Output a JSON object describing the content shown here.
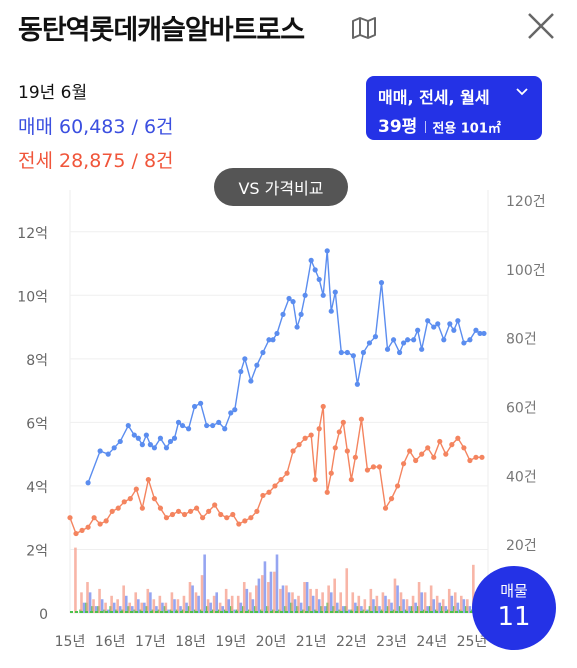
{
  "header": {
    "title": "동탄역롯데캐슬알바트로스",
    "map_icon": "map-icon",
    "close_icon": "close-icon"
  },
  "summary": {
    "date": "19년 6월",
    "sale": "매매 60,483 / 6건",
    "jeonse": "전세 28,875 / 8건"
  },
  "filter": {
    "types": "매매, 전세, 월세",
    "pyeong": "39평",
    "area": "전용 101㎡"
  },
  "compare_button": "VS 가격비교",
  "floating": {
    "label": "매물",
    "count": "11"
  },
  "colors": {
    "sale": "#5b8def",
    "jeonse": "#f4845f",
    "accent": "#2432e6",
    "volume_green": "#4cc24c"
  },
  "chart_data": {
    "type": "line",
    "x_axis_labels": [
      "15년",
      "16년",
      "17년",
      "18년",
      "19년",
      "20년",
      "21년",
      "22년",
      "23년",
      "24년",
      "25년"
    ],
    "x_range": [
      2015.0,
      2025.4
    ],
    "y_left_label_ticks": [
      "0",
      "2억",
      "4억",
      "6억",
      "8억",
      "10억",
      "12억"
    ],
    "y_left_range": [
      0,
      13
    ],
    "y_right_label_ticks": [
      "20건",
      "40건",
      "60건",
      "80건",
      "100건",
      "120건"
    ],
    "y_right_range": [
      0,
      120
    ],
    "grid": "horizontal",
    "series": [
      {
        "name": "매매",
        "color": "#5b8def",
        "x": [
          2015.45,
          2015.75,
          2015.95,
          2016.1,
          2016.25,
          2016.45,
          2016.6,
          2016.7,
          2016.8,
          2016.9,
          2017.0,
          2017.1,
          2017.25,
          2017.4,
          2017.5,
          2017.6,
          2017.7,
          2017.8,
          2017.95,
          2018.1,
          2018.25,
          2018.4,
          2018.55,
          2018.7,
          2018.85,
          2019.0,
          2019.1,
          2019.25,
          2019.35,
          2019.5,
          2019.65,
          2019.8,
          2019.95,
          2020.05,
          2020.15,
          2020.3,
          2020.45,
          2020.55,
          2020.65,
          2020.75,
          2020.85,
          2021.0,
          2021.1,
          2021.2,
          2021.3,
          2021.4,
          2021.5,
          2021.6,
          2021.75,
          2021.9,
          2022.05,
          2022.15,
          2022.3,
          2022.45,
          2022.6,
          2022.75,
          2022.9,
          2023.05,
          2023.2,
          2023.3,
          2023.4,
          2023.55,
          2023.65,
          2023.75,
          2023.9,
          2024.05,
          2024.15,
          2024.3,
          2024.45,
          2024.55,
          2024.65,
          2024.8,
          2024.95,
          2025.1,
          2025.2,
          2025.3
        ],
        "values": [
          4.1,
          5.1,
          5.0,
          5.2,
          5.4,
          5.9,
          5.6,
          5.5,
          5.3,
          5.6,
          5.3,
          5.2,
          5.5,
          5.2,
          5.4,
          5.5,
          6.0,
          5.9,
          5.8,
          6.5,
          6.6,
          5.9,
          5.9,
          6.0,
          5.8,
          6.3,
          6.4,
          7.6,
          8.0,
          7.3,
          7.8,
          8.2,
          8.6,
          8.6,
          8.8,
          9.4,
          9.9,
          9.8,
          9.0,
          9.4,
          10.0,
          11.1,
          10.8,
          10.5,
          10.0,
          11.4,
          9.5,
          10.1,
          8.2,
          8.2,
          8.1,
          7.2,
          8.2,
          8.5,
          8.7,
          10.4,
          8.3,
          8.6,
          8.2,
          8.5,
          8.6,
          8.6,
          8.9,
          8.3,
          9.2,
          9.0,
          9.1,
          8.6,
          9.1,
          8.9,
          9.2,
          8.5,
          8.6,
          8.9,
          8.8,
          8.8
        ],
        "values_note": "억"
      },
      {
        "name": "전세",
        "color": "#f4845f",
        "x": [
          2015.0,
          2015.15,
          2015.3,
          2015.45,
          2015.6,
          2015.75,
          2015.9,
          2016.05,
          2016.2,
          2016.35,
          2016.5,
          2016.65,
          2016.8,
          2016.95,
          2017.1,
          2017.25,
          2017.4,
          2017.55,
          2017.7,
          2017.85,
          2018.0,
          2018.15,
          2018.3,
          2018.45,
          2018.6,
          2018.75,
          2018.9,
          2019.05,
          2019.2,
          2019.35,
          2019.5,
          2019.65,
          2019.8,
          2019.95,
          2020.1,
          2020.25,
          2020.4,
          2020.55,
          2020.7,
          2020.85,
          2021.0,
          2021.1,
          2021.2,
          2021.3,
          2021.4,
          2021.5,
          2021.6,
          2021.7,
          2021.8,
          2021.9,
          2022.0,
          2022.1,
          2022.25,
          2022.4,
          2022.55,
          2022.7,
          2022.85,
          2023.0,
          2023.15,
          2023.3,
          2023.45,
          2023.6,
          2023.75,
          2023.9,
          2024.05,
          2024.2,
          2024.35,
          2024.5,
          2024.65,
          2024.8,
          2024.95,
          2025.1,
          2025.25
        ],
        "values": [
          3.0,
          2.5,
          2.6,
          2.7,
          3.0,
          2.8,
          2.9,
          3.2,
          3.3,
          3.5,
          3.6,
          3.9,
          3.3,
          4.2,
          3.6,
          3.3,
          3.0,
          3.1,
          3.2,
          3.1,
          3.2,
          3.3,
          3.0,
          3.2,
          3.4,
          3.1,
          3.0,
          3.1,
          2.8,
          2.9,
          3.0,
          3.2,
          3.7,
          3.8,
          4.0,
          4.2,
          4.4,
          5.1,
          5.3,
          5.5,
          5.6,
          4.2,
          5.8,
          6.5,
          3.8,
          4.4,
          5.2,
          5.7,
          6.0,
          5.1,
          4.2,
          4.9,
          6.1,
          4.5,
          4.6,
          4.6,
          3.3,
          3.6,
          4.0,
          4.7,
          5.1,
          4.8,
          5.0,
          5.2,
          4.9,
          5.4,
          5.0,
          5.3,
          5.5,
          5.2,
          4.8,
          4.9,
          4.9
        ],
        "values_note": "억"
      }
    ],
    "volume_bars": {
      "sale_color": "#8a9bef",
      "jeonse_color": "#f7a898",
      "monthly_color": "#4cc24c",
      "x": [
        2015.2,
        2015.35,
        2015.5,
        2015.65,
        2015.8,
        2015.95,
        2016.1,
        2016.25,
        2016.4,
        2016.55,
        2016.7,
        2016.85,
        2017.0,
        2017.15,
        2017.3,
        2017.45,
        2017.6,
        2017.75,
        2017.9,
        2018.05,
        2018.2,
        2018.35,
        2018.5,
        2018.65,
        2018.8,
        2018.95,
        2019.1,
        2019.25,
        2019.4,
        2019.55,
        2019.7,
        2019.85,
        2020.0,
        2020.15,
        2020.3,
        2020.45,
        2020.6,
        2020.75,
        2020.9,
        2021.05,
        2021.2,
        2021.35,
        2021.5,
        2021.65,
        2021.8,
        2021.95,
        2022.1,
        2022.25,
        2022.4,
        2022.55,
        2022.7,
        2022.85,
        2023.0,
        2023.15,
        2023.3,
        2023.45,
        2023.6,
        2023.75,
        2023.9,
        2024.05,
        2024.2,
        2024.35,
        2024.5,
        2024.65,
        2024.8,
        2024.95,
        2025.1,
        2025.25
      ],
      "sale": [
        0,
        3,
        6,
        2,
        4,
        1,
        3,
        2,
        5,
        2,
        4,
        3,
        6,
        2,
        3,
        1,
        4,
        2,
        3,
        8,
        5,
        17,
        3,
        6,
        2,
        4,
        1,
        3,
        7,
        4,
        10,
        15,
        12,
        17,
        8,
        6,
        4,
        3,
        9,
        5,
        4,
        2,
        6,
        3,
        2,
        1,
        3,
        2,
        1,
        4,
        2,
        5,
        3,
        8,
        4,
        2,
        3,
        6,
        2,
        4,
        3,
        2,
        5,
        3,
        4,
        2,
        6,
        3
      ],
      "jeonse": [
        19,
        6,
        9,
        4,
        7,
        3,
        5,
        4,
        8,
        3,
        6,
        3,
        7,
        4,
        5,
        3,
        6,
        4,
        5,
        9,
        6,
        11,
        4,
        5,
        3,
        7,
        5,
        5,
        9,
        6,
        8,
        11,
        9,
        12,
        7,
        8,
        6,
        5,
        9,
        7,
        7,
        6,
        8,
        10,
        6,
        13,
        6,
        5,
        4,
        7,
        5,
        6,
        4,
        10,
        6,
        4,
        5,
        9,
        6,
        8,
        5,
        4,
        7,
        6,
        5,
        4,
        14,
        5
      ],
      "monthly": [
        1,
        3,
        2,
        2,
        1,
        2,
        1,
        1,
        2,
        1,
        1,
        2,
        1,
        1,
        2,
        1,
        1,
        1,
        2,
        1,
        1,
        2,
        1,
        1,
        1,
        2,
        1,
        2,
        1,
        2,
        1,
        2,
        1,
        1,
        2,
        3,
        2,
        1,
        2,
        1,
        2,
        3,
        2,
        1,
        2,
        1,
        2,
        1,
        2,
        2,
        1,
        2,
        1,
        2,
        1,
        2,
        2,
        1,
        2,
        1,
        2,
        1,
        2,
        1,
        2,
        1,
        2,
        2
      ]
    }
  }
}
